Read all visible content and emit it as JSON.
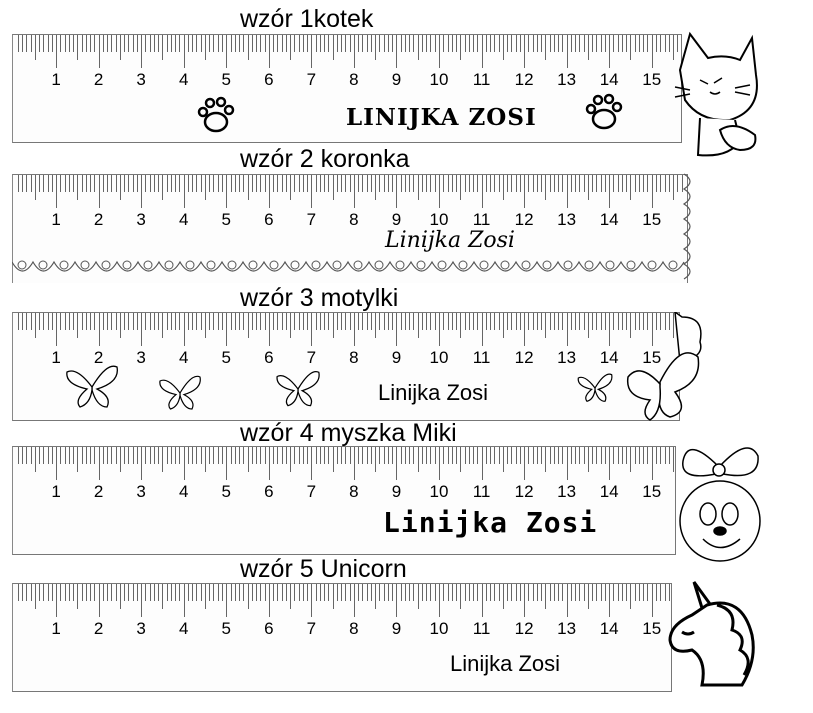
{
  "rulers": [
    {
      "title": "wzór 1kotek",
      "label": "LINIJKA ZOSI",
      "decoration": "cat-icon",
      "extra": "paw-icon"
    },
    {
      "title": "wzór 2 koronka",
      "label": "Linijka Zosi",
      "decoration": "lace-edge"
    },
    {
      "title": "wzór 3 motylki",
      "label": "Linijka Zosi",
      "decoration": "butterfly-icon"
    },
    {
      "title": "wzór 4 myszka Miki",
      "label": "Linijka Zosi",
      "decoration": "minnie-mouse-icon"
    },
    {
      "title": "wzór 5 Unicorn",
      "label": "Linijka Zosi",
      "decoration": "unicorn-icon"
    }
  ],
  "scale_numbers": [
    "1",
    "2",
    "3",
    "4",
    "5",
    "6",
    "7",
    "8",
    "9",
    "10",
    "11",
    "12",
    "13",
    "14",
    "15"
  ]
}
